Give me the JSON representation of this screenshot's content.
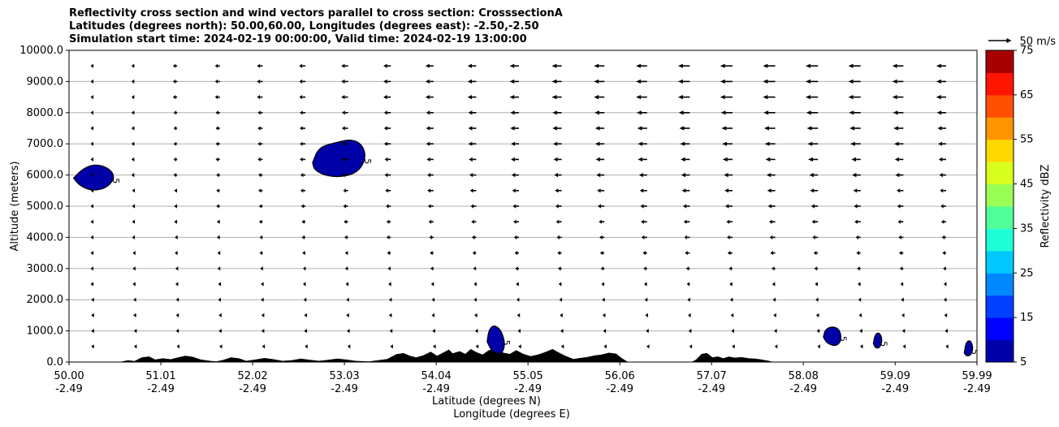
{
  "header": {
    "title_line1": "Reflectivity cross section and wind vectors parallel to cross section: CrosssectionA",
    "title_line2": "Latitudes (degrees north): 50.00,60.00, Longitudes (degrees east): -2.50,-2.50",
    "title_line3": "Simulation start time: 2024-02-19 00:00:00, Valid time: 2024-02-19 13:00:00"
  },
  "chart_data": {
    "type": "cross-section",
    "xlabel": "Latitude (degrees N)",
    "xlabel2": "Longitude (degrees E)",
    "ylabel": "Altitude (meters)",
    "xlim": [
      50.0,
      59.99
    ],
    "ylim": [
      0,
      10000
    ],
    "grid": "horizontal",
    "x_ticks": [
      {
        "value": 50.0,
        "lat": "50.00",
        "lon": "-2.49"
      },
      {
        "value": 51.01,
        "lat": "51.01",
        "lon": "-2.49"
      },
      {
        "value": 52.02,
        "lat": "52.02",
        "lon": "-2.49"
      },
      {
        "value": 53.03,
        "lat": "53.03",
        "lon": "-2.49"
      },
      {
        "value": 54.04,
        "lat": "54.04",
        "lon": "-2.49"
      },
      {
        "value": 55.05,
        "lat": "55.05",
        "lon": "-2.49"
      },
      {
        "value": 56.06,
        "lat": "56.06",
        "lon": "-2.49"
      },
      {
        "value": 57.07,
        "lat": "57.07",
        "lon": "-2.49"
      },
      {
        "value": 58.08,
        "lat": "58.08",
        "lon": "-2.49"
      },
      {
        "value": 59.09,
        "lat": "59.09",
        "lon": "-2.49"
      },
      {
        "value": 59.99,
        "lat": "59.99",
        "lon": "-2.49"
      }
    ],
    "y_ticks": [
      "0.0",
      "1000.0",
      "2000.0",
      "3000.0",
      "4000.0",
      "5000.0",
      "6000.0",
      "7000.0",
      "8000.0",
      "9000.0",
      "10000.0"
    ],
    "quiver_key": {
      "value": 50,
      "label": "50 m/s"
    },
    "wind_vectors": {
      "x_positions": [
        50.0,
        50.47,
        50.94,
        51.41,
        51.88,
        52.35,
        52.82,
        53.29,
        53.76,
        54.23,
        54.7,
        55.17,
        55.64,
        56.11,
        56.58,
        57.05,
        57.52,
        57.99,
        58.46,
        58.93,
        59.4,
        59.87
      ],
      "rows": [
        {
          "alt": 9500,
          "u": [
            -2,
            -5,
            -7,
            -8,
            -9,
            -10,
            -11,
            -12,
            -13,
            -14,
            -15,
            -16,
            -17,
            -18,
            -19,
            -20,
            -20,
            -20,
            -20,
            -18,
            -16,
            -14
          ]
        },
        {
          "alt": 9000,
          "u": [
            -2,
            -5,
            -7,
            -8,
            -9,
            -10,
            -11,
            -12,
            -13,
            -14,
            -15,
            -16,
            -17,
            -18,
            -19,
            -20,
            -20,
            -20,
            -20,
            -18,
            -16,
            -14
          ]
        },
        {
          "alt": 8500,
          "u": [
            -2,
            -5,
            -7,
            -8,
            -9,
            -10,
            -11,
            -12,
            -13,
            -14,
            -15,
            -16,
            -17,
            -18,
            -19,
            -20,
            -20,
            -20,
            -20,
            -18,
            -16,
            -14
          ]
        },
        {
          "alt": 8000,
          "u": [
            -2,
            -5,
            -6,
            -7,
            -8,
            -9,
            -10,
            -11,
            -12,
            -13,
            -14,
            -15,
            -16,
            -17,
            -18,
            -19,
            -19,
            -19,
            -19,
            -17,
            -15,
            -13
          ]
        },
        {
          "alt": 7500,
          "u": [
            -2,
            -5,
            -6,
            -7,
            -8,
            -9,
            -10,
            -11,
            -12,
            -13,
            -14,
            -15,
            -15,
            -16,
            -17,
            -18,
            -18,
            -18,
            -18,
            -16,
            -14,
            -12
          ]
        },
        {
          "alt": 7000,
          "u": [
            -2,
            -5,
            -6,
            -7,
            -8,
            -9,
            -10,
            -11,
            -12,
            -13,
            -13,
            -14,
            -15,
            -15,
            -16,
            -17,
            -17,
            -17,
            -17,
            -15,
            -13,
            -11
          ]
        },
        {
          "alt": 6500,
          "u": [
            -2,
            -5,
            -6,
            -7,
            -8,
            -9,
            -10,
            -10,
            -11,
            -12,
            -13,
            -13,
            -14,
            -15,
            -15,
            -16,
            -16,
            -16,
            -15,
            -14,
            -12,
            -10
          ]
        },
        {
          "alt": 6000,
          "u": [
            -2,
            -5,
            -6,
            -6,
            -7,
            -8,
            -9,
            -10,
            -10,
            -11,
            -12,
            -12,
            -13,
            -13,
            -14,
            -14,
            -14,
            -14,
            -14,
            -13,
            -11,
            -9
          ]
        },
        {
          "alt": 5500,
          "u": [
            -2,
            -4,
            -5,
            -6,
            -7,
            -8,
            -8,
            -9,
            -10,
            -10,
            -11,
            -11,
            -12,
            -12,
            -13,
            -13,
            -13,
            -13,
            -12,
            -11,
            -10,
            -8
          ]
        },
        {
          "alt": 5000,
          "u": [
            -2,
            -4,
            -5,
            -6,
            -6,
            -7,
            -8,
            -8,
            -9,
            -9,
            -10,
            -10,
            -11,
            -11,
            -11,
            -12,
            -12,
            -11,
            -11,
            -10,
            -9,
            -7
          ]
        },
        {
          "alt": 4500,
          "u": [
            -2,
            -4,
            -5,
            -5,
            -6,
            -6,
            -7,
            -7,
            -8,
            -8,
            -9,
            -9,
            -9,
            -10,
            -10,
            -10,
            -10,
            -10,
            -10,
            -9,
            -8,
            -6
          ]
        },
        {
          "alt": 4000,
          "u": [
            -2,
            -4,
            -4,
            -5,
            -5,
            -6,
            -6,
            -7,
            -7,
            -7,
            -8,
            -8,
            -8,
            -9,
            -9,
            -9,
            -9,
            -9,
            -8,
            -8,
            -7,
            -6
          ]
        },
        {
          "alt": 3500,
          "u": [
            -2,
            -3,
            -4,
            -4,
            -5,
            -5,
            -5,
            -6,
            -6,
            -6,
            -7,
            -7,
            -7,
            -7,
            -8,
            -8,
            -8,
            -7,
            -7,
            -7,
            -6,
            -5
          ]
        },
        {
          "alt": 3000,
          "u": [
            -2,
            -3,
            -3,
            -4,
            -4,
            -4,
            -5,
            -5,
            -5,
            -5,
            -6,
            -6,
            -6,
            -6,
            -6,
            -6,
            -6,
            -6,
            -6,
            -6,
            -5,
            -5
          ]
        },
        {
          "alt": 2500,
          "u": [
            -2,
            -3,
            -3,
            -3,
            -3,
            -4,
            -4,
            -4,
            -4,
            -4,
            -5,
            -5,
            -5,
            -5,
            -5,
            -5,
            -5,
            -5,
            -5,
            -5,
            -4,
            -4
          ]
        },
        {
          "alt": 2000,
          "u": [
            -1,
            -2,
            -2,
            -3,
            -3,
            -3,
            -3,
            -3,
            -3,
            -4,
            -4,
            -4,
            -4,
            -4,
            -4,
            -4,
            -4,
            -4,
            -4,
            -4,
            -4,
            -3
          ]
        },
        {
          "alt": 1500,
          "u": [
            -1,
            -2,
            -2,
            -2,
            -2,
            -2,
            -3,
            -3,
            -3,
            -3,
            -3,
            -3,
            -3,
            -3,
            -3,
            -3,
            -3,
            -3,
            -3,
            -3,
            -3,
            -3
          ]
        },
        {
          "alt": 1000,
          "u": [
            -1,
            -1,
            -2,
            -2,
            -2,
            -2,
            -2,
            -2,
            -2,
            -2,
            -2,
            -2,
            -2,
            -2,
            -2,
            -2,
            -2,
            -2,
            -2,
            -2,
            -2,
            -2
          ]
        },
        {
          "alt": 500,
          "u": [
            -1,
            -1,
            -1,
            -1,
            -1,
            -1,
            -1,
            -1,
            -1,
            -1,
            -1,
            -1,
            -1,
            -1,
            -1,
            -1,
            -1,
            -1,
            -1,
            -1,
            -1,
            -1
          ]
        }
      ]
    },
    "reflectivity_cells": [
      {
        "label": "5",
        "points": [
          [
            50.05,
            5900
          ],
          [
            50.15,
            6200
          ],
          [
            50.28,
            6350
          ],
          [
            50.42,
            6250
          ],
          [
            50.5,
            6000
          ],
          [
            50.47,
            5750
          ],
          [
            50.38,
            5550
          ],
          [
            50.25,
            5500
          ],
          [
            50.12,
            5650
          ]
        ]
      },
      {
        "label": "5",
        "points": [
          [
            52.68,
            6400
          ],
          [
            52.75,
            6900
          ],
          [
            52.95,
            7050
          ],
          [
            53.1,
            7150
          ],
          [
            53.22,
            7000
          ],
          [
            53.27,
            6600
          ],
          [
            53.2,
            6150
          ],
          [
            53.05,
            5950
          ],
          [
            52.85,
            5950
          ],
          [
            52.7,
            6150
          ]
        ]
      },
      {
        "label": "5",
        "points": [
          [
            54.6,
            650
          ],
          [
            54.62,
            1050
          ],
          [
            54.68,
            1200
          ],
          [
            54.76,
            1000
          ],
          [
            54.8,
            550
          ],
          [
            54.76,
            250
          ],
          [
            54.66,
            300
          ]
        ]
      },
      {
        "label": "5",
        "points": [
          [
            58.3,
            800
          ],
          [
            58.32,
            1050
          ],
          [
            58.4,
            1150
          ],
          [
            58.48,
            1050
          ],
          [
            58.5,
            700
          ],
          [
            58.44,
            500
          ],
          [
            58.34,
            600
          ]
        ]
      },
      {
        "label": "5",
        "points": [
          [
            58.85,
            600
          ],
          [
            58.87,
            900
          ],
          [
            58.92,
            950
          ],
          [
            58.95,
            700
          ],
          [
            58.92,
            450
          ],
          [
            58.87,
            450
          ]
        ]
      },
      {
        "label": "5",
        "points": [
          [
            59.85,
            300
          ],
          [
            59.87,
            650
          ],
          [
            59.92,
            700
          ],
          [
            59.95,
            450
          ],
          [
            59.92,
            200
          ],
          [
            59.87,
            200
          ]
        ]
      }
    ],
    "terrain": [
      [
        50.0,
        0
      ],
      [
        50.55,
        0
      ],
      [
        50.65,
        60
      ],
      [
        50.72,
        30
      ],
      [
        50.8,
        150
      ],
      [
        50.88,
        180
      ],
      [
        50.95,
        80
      ],
      [
        51.03,
        120
      ],
      [
        51.12,
        90
      ],
      [
        51.2,
        150
      ],
      [
        51.28,
        200
      ],
      [
        51.36,
        170
      ],
      [
        51.45,
        80
      ],
      [
        51.55,
        40
      ],
      [
        51.62,
        20
      ],
      [
        51.7,
        70
      ],
      [
        51.78,
        150
      ],
      [
        51.87,
        120
      ],
      [
        51.95,
        40
      ],
      [
        52.05,
        80
      ],
      [
        52.15,
        130
      ],
      [
        52.25,
        90
      ],
      [
        52.35,
        40
      ],
      [
        52.45,
        60
      ],
      [
        52.55,
        110
      ],
      [
        52.65,
        70
      ],
      [
        52.75,
        40
      ],
      [
        52.85,
        70
      ],
      [
        52.95,
        110
      ],
      [
        53.05,
        80
      ],
      [
        53.15,
        40
      ],
      [
        53.3,
        20
      ],
      [
        53.4,
        60
      ],
      [
        53.5,
        100
      ],
      [
        53.6,
        250
      ],
      [
        53.68,
        290
      ],
      [
        53.75,
        200
      ],
      [
        53.82,
        150
      ],
      [
        53.9,
        220
      ],
      [
        53.98,
        330
      ],
      [
        54.05,
        200
      ],
      [
        54.12,
        310
      ],
      [
        54.18,
        400
      ],
      [
        54.22,
        280
      ],
      [
        54.3,
        350
      ],
      [
        54.36,
        260
      ],
      [
        54.42,
        420
      ],
      [
        54.48,
        320
      ],
      [
        54.55,
        240
      ],
      [
        54.62,
        380
      ],
      [
        54.7,
        450
      ],
      [
        54.78,
        300
      ],
      [
        54.85,
        260
      ],
      [
        54.92,
        380
      ],
      [
        55.0,
        260
      ],
      [
        55.08,
        190
      ],
      [
        55.16,
        240
      ],
      [
        55.25,
        330
      ],
      [
        55.32,
        420
      ],
      [
        55.38,
        320
      ],
      [
        55.46,
        200
      ],
      [
        55.55,
        100
      ],
      [
        55.62,
        130
      ],
      [
        55.7,
        160
      ],
      [
        55.78,
        210
      ],
      [
        55.86,
        240
      ],
      [
        55.94,
        300
      ],
      [
        56.02,
        270
      ],
      [
        56.08,
        130
      ],
      [
        56.15,
        0
      ],
      [
        56.85,
        0
      ],
      [
        56.9,
        80
      ],
      [
        56.96,
        260
      ],
      [
        57.02,
        290
      ],
      [
        57.08,
        150
      ],
      [
        57.14,
        180
      ],
      [
        57.2,
        120
      ],
      [
        57.26,
        180
      ],
      [
        57.32,
        140
      ],
      [
        57.4,
        160
      ],
      [
        57.48,
        120
      ],
      [
        57.55,
        110
      ],
      [
        57.62,
        80
      ],
      [
        57.7,
        40
      ],
      [
        57.75,
        0
      ],
      [
        59.99,
        0
      ]
    ],
    "colorbar": {
      "label": "Reflectivity dBZ",
      "levels": [
        5,
        10,
        15,
        20,
        25,
        30,
        35,
        40,
        45,
        50,
        55,
        60,
        65,
        70,
        75
      ],
      "tick_labels": [
        "5",
        "15",
        "25",
        "35",
        "45",
        "55",
        "65",
        "75"
      ],
      "colors": [
        "#0000a8",
        "#0000ff",
        "#0040ff",
        "#0088ff",
        "#00c8ff",
        "#1effd8",
        "#50ff9a",
        "#9aff55",
        "#d8ff1e",
        "#ffd800",
        "#ff9400",
        "#ff5000",
        "#ff1400",
        "#a80000"
      ]
    }
  }
}
